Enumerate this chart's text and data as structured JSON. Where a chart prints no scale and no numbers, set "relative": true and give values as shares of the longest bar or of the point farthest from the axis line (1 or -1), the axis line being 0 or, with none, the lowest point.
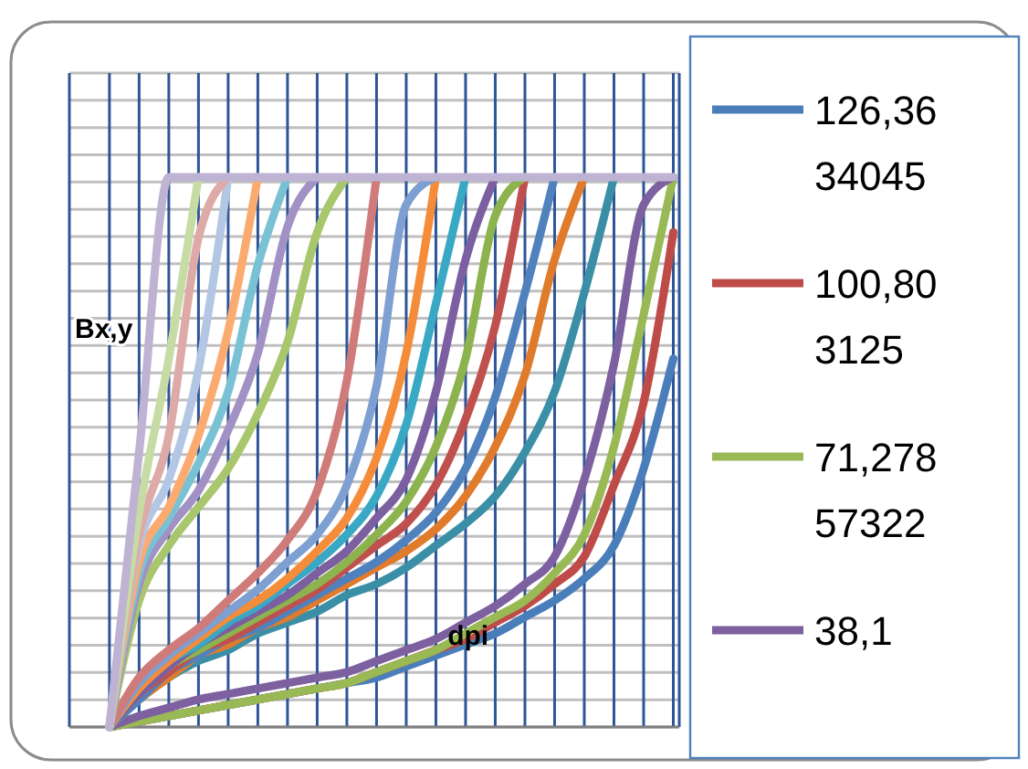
{
  "chart_data": {
    "type": "line",
    "relative": true,
    "xlabel": "dpi",
    "ylabel": "Bx,y",
    "grid": true,
    "legend": "right",
    "marker": "none",
    "line_style": "solid",
    "categories": [
      null,
      null,
      null,
      null,
      null,
      null,
      null,
      null,
      null,
      null,
      null,
      null,
      null,
      null,
      null,
      null,
      null,
      null,
      null,
      null
    ],
    "series": [
      {
        "name": "126,3634045",
        "color": "#4a7ebb",
        "values": [
          0,
          0.01,
          0.02,
          0.03,
          0.04,
          0.05,
          0.06,
          0.07,
          0.08,
          0.09,
          0.11,
          0.13,
          0.15,
          0.17,
          0.2,
          0.23,
          0.27,
          0.33,
          0.47,
          0.67
        ]
      },
      {
        "name": "100,803125",
        "color": "#be4b48",
        "values": [
          0,
          0.01,
          0.02,
          0.03,
          0.04,
          0.05,
          0.06,
          0.07,
          0.08,
          0.1,
          0.12,
          0.14,
          0.16,
          0.19,
          0.22,
          0.26,
          0.31,
          0.44,
          0.59,
          0.9
        ]
      },
      {
        "name": "71,27857322",
        "color": "#98b954",
        "values": [
          0,
          0.01,
          0.02,
          0.03,
          0.04,
          0.05,
          0.06,
          0.07,
          0.08,
          0.1,
          0.12,
          0.14,
          0.17,
          0.2,
          0.23,
          0.28,
          0.35,
          0.51,
          0.75,
          1
        ]
      },
      {
        "name": "38,1",
        "color": "#7d60a0",
        "values": [
          0,
          0.02,
          0.035,
          0.05,
          0.06,
          0.07,
          0.08,
          0.09,
          0.1,
          0.12,
          0.14,
          0.16,
          0.19,
          0.22,
          0.26,
          0.31,
          0.45,
          0.66,
          0.95,
          1
        ]
      },
      {
        "color": "#3a8fa6",
        "values": [
          0,
          0.05,
          0.09,
          0.12,
          0.14,
          0.17,
          0.19,
          0.21,
          0.24,
          0.26,
          0.29,
          0.33,
          0.37,
          0.42,
          0.5,
          0.61,
          0.79,
          1,
          null,
          null
        ]
      },
      {
        "color": "#e07b2c",
        "values": [
          0,
          0.05,
          0.09,
          0.13,
          0.15,
          0.18,
          0.2,
          0.23,
          0.26,
          0.29,
          0.32,
          0.36,
          0.42,
          0.51,
          0.64,
          0.85,
          1,
          null,
          null,
          null
        ]
      },
      {
        "color": "#4f81bd",
        "values": [
          0,
          0.05,
          0.1,
          0.13,
          0.16,
          0.18,
          0.21,
          0.24,
          0.27,
          0.3,
          0.34,
          0.39,
          0.47,
          0.6,
          0.79,
          1,
          null,
          null,
          null,
          null
        ]
      },
      {
        "color": "#c0504d",
        "values": [
          0,
          0.06,
          0.1,
          0.14,
          0.16,
          0.19,
          0.22,
          0.25,
          0.29,
          0.33,
          0.37,
          0.44,
          0.56,
          0.73,
          1,
          null,
          null,
          null,
          null,
          null
        ]
      },
      {
        "color": "#8db34e",
        "values": [
          0,
          0.06,
          0.11,
          0.14,
          0.17,
          0.2,
          0.23,
          0.26,
          0.3,
          0.35,
          0.41,
          0.51,
          0.67,
          0.93,
          1,
          null,
          null,
          null,
          null,
          null
        ]
      },
      {
        "color": "#7b5fa0",
        "values": [
          0,
          0.06,
          0.11,
          0.15,
          0.18,
          0.21,
          0.24,
          0.28,
          0.32,
          0.38,
          0.45,
          0.61,
          0.85,
          1,
          null,
          null,
          null,
          null,
          null,
          null
        ]
      },
      {
        "color": "#38a8c4",
        "values": [
          0,
          0.07,
          0.12,
          0.15,
          0.19,
          0.22,
          0.26,
          0.3,
          0.35,
          0.42,
          0.55,
          0.77,
          1,
          null,
          null,
          null,
          null,
          null,
          null,
          null
        ]
      },
      {
        "color": "#f58c3a",
        "values": [
          0,
          0.07,
          0.12,
          0.16,
          0.2,
          0.23,
          0.27,
          0.32,
          0.38,
          0.49,
          0.68,
          1,
          null,
          null,
          null,
          null,
          null,
          null,
          null,
          null
        ]
      },
      {
        "color": "#7d9fd1",
        "values": [
          0,
          0.08,
          0.13,
          0.17,
          0.21,
          0.25,
          0.3,
          0.35,
          0.44,
          0.62,
          0.95,
          1,
          null,
          null,
          null,
          null,
          null,
          null,
          null,
          null
        ]
      },
      {
        "color": "#cf7b79",
        "values": [
          0,
          0.09,
          0.14,
          0.18,
          0.23,
          0.28,
          0.34,
          0.43,
          0.63,
          1,
          null,
          null,
          null,
          null,
          null,
          null,
          null,
          null,
          null,
          null
        ]
      },
      {
        "color": "#a8c66c",
        "values": [
          0,
          0.23,
          0.33,
          0.4,
          0.47,
          0.57,
          0.7,
          0.9,
          1,
          null,
          null,
          null,
          null,
          null,
          null,
          null,
          null,
          null,
          null,
          null
        ]
      },
      {
        "color": "#a191c4",
        "values": [
          0,
          0.26,
          0.36,
          0.43,
          0.54,
          0.68,
          0.91,
          1,
          null,
          null,
          null,
          null,
          null,
          null,
          null,
          null,
          null,
          null,
          null,
          null
        ]
      },
      {
        "color": "#79c1d5",
        "values": [
          0,
          0.28,
          0.38,
          0.48,
          0.61,
          0.84,
          1,
          null,
          null,
          null,
          null,
          null,
          null,
          null,
          null,
          null,
          null,
          null,
          null,
          null
        ]
      },
      {
        "color": "#fbab70",
        "values": [
          0,
          0.3,
          0.4,
          0.53,
          0.72,
          1,
          null,
          null,
          null,
          null,
          null,
          null,
          null,
          null,
          null,
          null,
          null,
          null,
          null,
          null
        ]
      },
      {
        "color": "#b3c6e4",
        "values": [
          0,
          0.33,
          0.45,
          0.65,
          1,
          null,
          null,
          null,
          null,
          null,
          null,
          null,
          null,
          null,
          null,
          null,
          null,
          null,
          null,
          null
        ]
      },
      {
        "color": "#deaaa8",
        "values": [
          0,
          0.35,
          0.53,
          0.89,
          1,
          null,
          null,
          null,
          null,
          null,
          null,
          null,
          null,
          null,
          null,
          null,
          null,
          null,
          null,
          null
        ]
      },
      {
        "color": "#c6dca4",
        "values": [
          0,
          0.39,
          0.67,
          1,
          null,
          null,
          null,
          null,
          null,
          null,
          null,
          null,
          null,
          null,
          null,
          null,
          null,
          null,
          null,
          null
        ]
      },
      {
        "color": "#beb3d3",
        "values": [
          0,
          0.5,
          1,
          1,
          1,
          1,
          1,
          1,
          1,
          1,
          1,
          1,
          1,
          1,
          1,
          1,
          1,
          1,
          1,
          1
        ]
      }
    ]
  }
}
